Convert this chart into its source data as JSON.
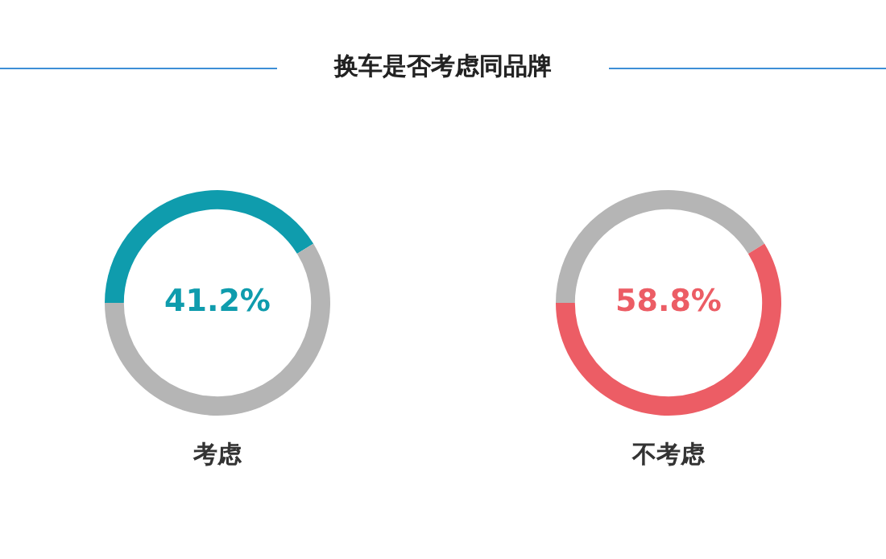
{
  "chart_data": [
    {
      "type": "donut",
      "title": "换车是否考虑同品牌",
      "xlabel": "考虑",
      "categories": [
        null,
        null
      ],
      "values": [
        41.2,
        58.8
      ],
      "colors": [
        "#0f9cad",
        "#b5b5b5"
      ],
      "annotations": [
        "41.2%"
      ],
      "legend": false
    },
    {
      "type": "donut",
      "xlabel": "不考虑",
      "categories": [
        null,
        null
      ],
      "values": [
        41.2,
        58.8
      ],
      "colors": [
        "#b5b5b5",
        "#ec5d65"
      ],
      "annotations": [
        "58.8%"
      ],
      "legend": false
    }
  ]
}
